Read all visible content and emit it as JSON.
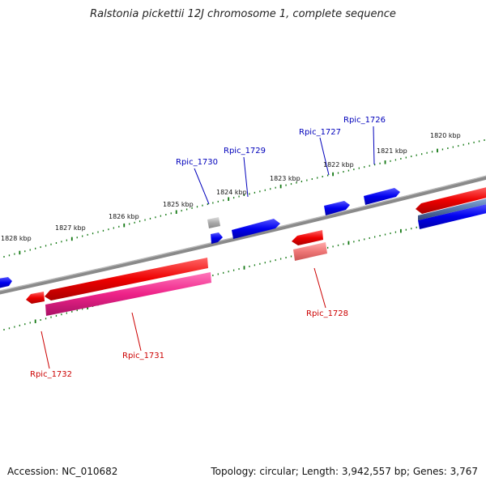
{
  "title": "Ralstonia pickettii 12J chromosome 1, complete sequence",
  "footer": {
    "accession": "Accession: NC_010682",
    "topology": "Topology: circular; Length: 3,942,557 bp; Genes: 3,767"
  },
  "scale_labels": [
    "1820 kbp",
    "1821 kbp",
    "1822 kbp",
    "1823 kbp",
    "1824 kbp",
    "1825 kbp",
    "1826 kbp",
    "1827 kbp",
    "1828 kbp"
  ],
  "gene_labels": [
    "Rpic_1726",
    "Rpic_1727",
    "Rpic_1729",
    "Rpic_1730",
    "Rpic_1728",
    "Rpic_1731",
    "Rpic_1732"
  ],
  "colors": {
    "forward_strand": "#0000ee",
    "reverse_strand": "#ee0000",
    "pseudo_pink": "#ee2288",
    "light_red": "#ee7777",
    "grey_gene": "#aaaaaa",
    "backbone": "#777777",
    "tick": "#117711",
    "label_blue": "#0000bb",
    "label_red": "#cc0000"
  }
}
